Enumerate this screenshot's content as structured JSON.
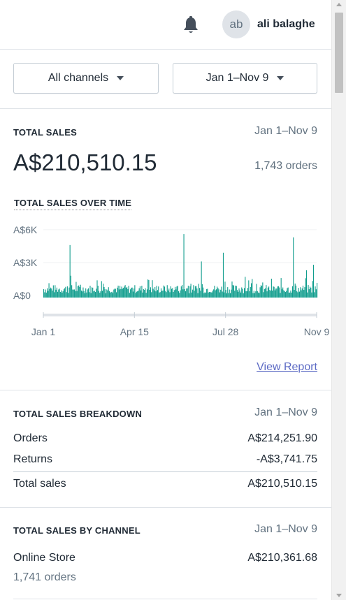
{
  "header": {
    "avatar_initials": "ab",
    "user_name": "ali balaghe",
    "icons": [
      "bell-icon"
    ]
  },
  "filters": {
    "channels_label": "All channels",
    "date_label": "Jan 1–Nov 9"
  },
  "total_sales": {
    "title": "TOTAL SALES",
    "date_range": "Jan 1–Nov 9",
    "amount": "A$210,510.15",
    "orders": "1,743 orders",
    "chart_title": "TOTAL SALES OVER TIME",
    "view_report": "View Report"
  },
  "chart_data": {
    "type": "bar",
    "title": "TOTAL SALES OVER TIME",
    "xlabel": "",
    "ylabel": "",
    "y_tick_labels": [
      "A$6K",
      "A$3K",
      "A$0"
    ],
    "y_ticks": [
      6000,
      3000,
      0
    ],
    "ylim": [
      0,
      6500
    ],
    "x_tick_labels": [
      "Jan 1",
      "Apr 15",
      "Jul 28",
      "Nov 9"
    ],
    "x_tick_days": [
      0,
      104,
      208,
      312
    ],
    "x_range_days": [
      0,
      312
    ],
    "grid": true,
    "color": "#109d8d",
    "spikes": [
      [
        30,
        4600
      ],
      [
        31,
        1800
      ],
      [
        120,
        1400
      ],
      [
        160,
        5600
      ],
      [
        180,
        3100
      ],
      [
        205,
        3900
      ],
      [
        230,
        1700
      ],
      [
        238,
        1500
      ],
      [
        285,
        5300
      ],
      [
        300,
        2300
      ],
      [
        308,
        2800
      ]
    ],
    "daily_base_range": [
      200,
      1600
    ]
  },
  "breakdown": {
    "title": "TOTAL SALES BREAKDOWN",
    "date_range": "Jan 1–Nov 9",
    "rows": [
      {
        "label": "Orders",
        "value": "A$214,251.90"
      },
      {
        "label": "Returns",
        "value": "-A$3,741.75"
      }
    ],
    "total_label": "Total sales",
    "total_value": "A$210,510.15"
  },
  "by_channel": {
    "title": "TOTAL SALES BY CHANNEL",
    "date_range": "Jan 1–Nov 9",
    "channel_name": "Online Store",
    "channel_value": "A$210,361.68",
    "channel_orders": "1,741 orders"
  },
  "colors": {
    "accent": "#109d8d",
    "link": "#5c6ac4",
    "text": "#212b36",
    "muted": "#637381",
    "border": "#dfe3e8"
  }
}
